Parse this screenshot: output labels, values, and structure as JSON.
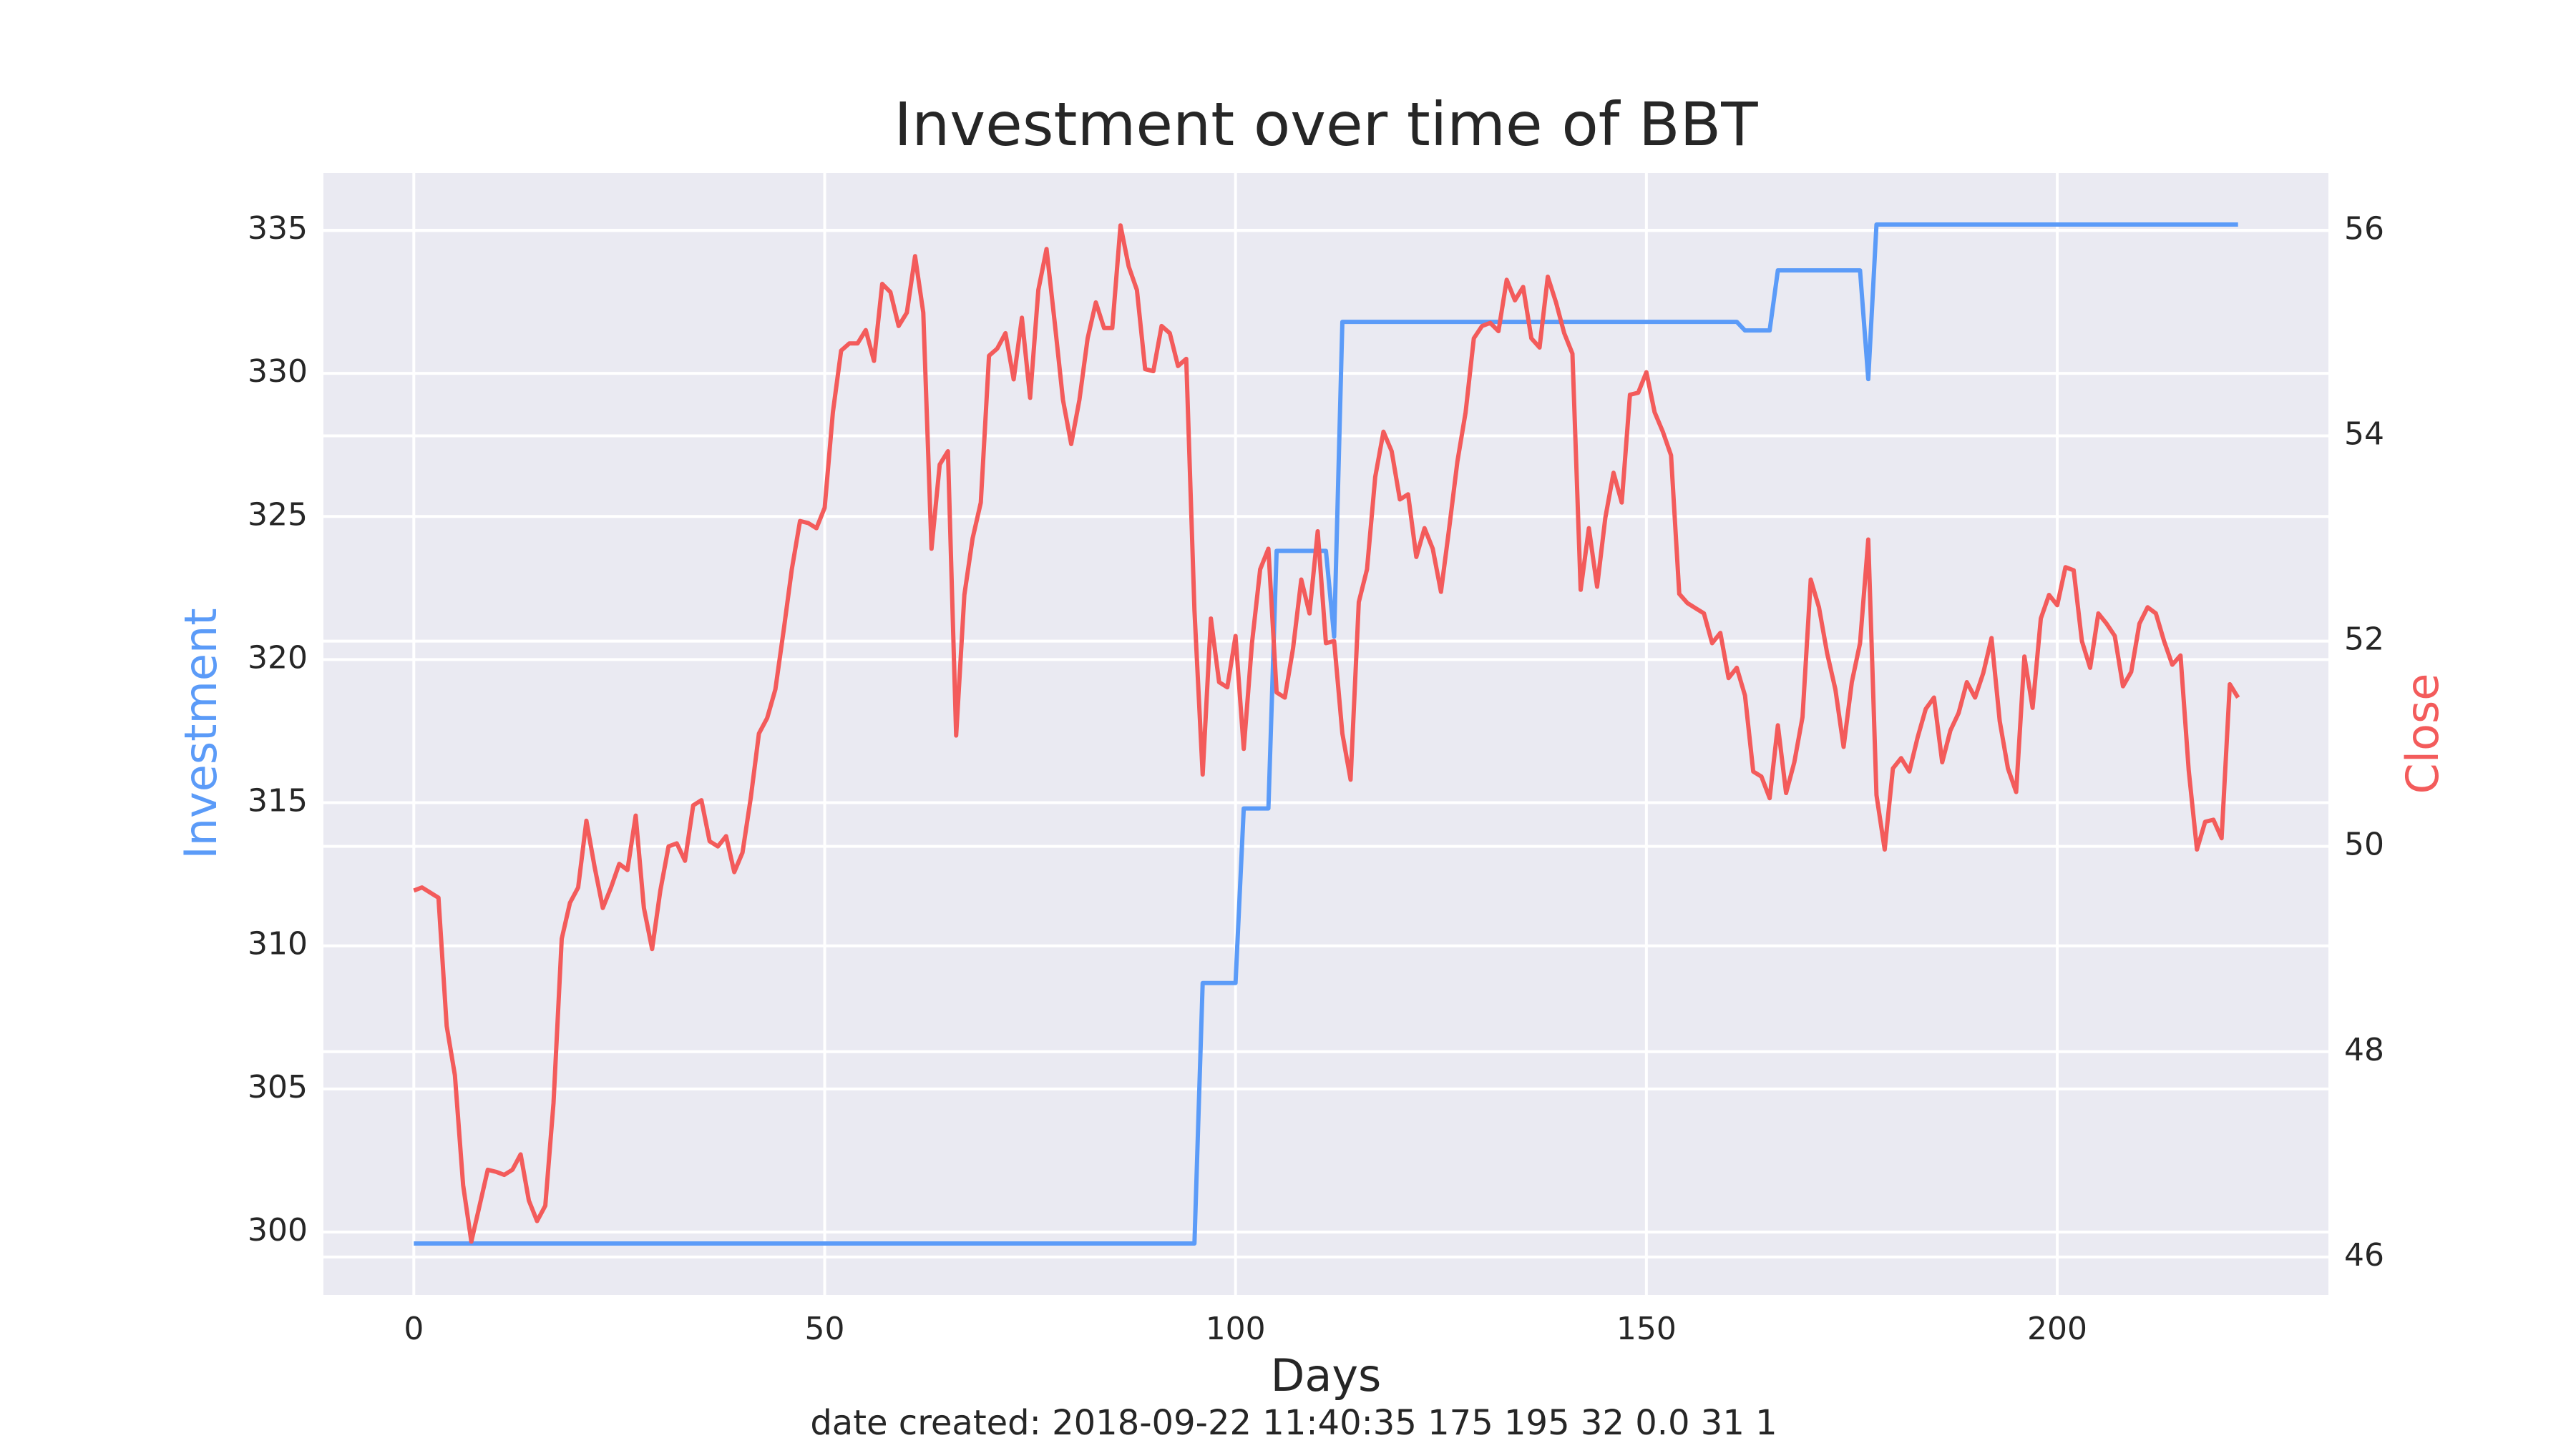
{
  "chart_data": {
    "type": "line",
    "title": "Investment over time of BBT",
    "x_label": "Days",
    "y_label": "Investment",
    "y2_label": "Close",
    "y_label_color": "#5b9bf8",
    "y2_label_color": "#f35b5b",
    "footer": "date created: 2018-09-22 11:40:35 175 195 32 0.0 31 1",
    "grid": true,
    "xlim": [
      -11,
      233
    ],
    "xticks": [
      0,
      50,
      100,
      150,
      200
    ],
    "ylim": [
      297.8,
      337.0
    ],
    "yticks": [
      300,
      305,
      310,
      315,
      320,
      325,
      330,
      335
    ],
    "y2lim": [
      45.63,
      56.56
    ],
    "y2ticks": [
      46,
      48,
      50,
      52,
      54,
      56
    ],
    "x": [
      0,
      1,
      2,
      3,
      4,
      5,
      6,
      7,
      8,
      9,
      10,
      11,
      12,
      13,
      14,
      15,
      16,
      17,
      18,
      19,
      20,
      21,
      22,
      23,
      24,
      25,
      26,
      27,
      28,
      29,
      30,
      31,
      32,
      33,
      34,
      35,
      36,
      37,
      38,
      39,
      40,
      41,
      42,
      43,
      44,
      45,
      46,
      47,
      48,
      49,
      50,
      51,
      52,
      53,
      54,
      55,
      56,
      57,
      58,
      59,
      60,
      61,
      62,
      63,
      64,
      65,
      66,
      67,
      68,
      69,
      70,
      71,
      72,
      73,
      74,
      75,
      76,
      77,
      78,
      79,
      80,
      81,
      82,
      83,
      84,
      85,
      86,
      87,
      88,
      89,
      90,
      91,
      92,
      93,
      94,
      95,
      96,
      97,
      98,
      99,
      100,
      101,
      102,
      103,
      104,
      105,
      106,
      107,
      108,
      109,
      110,
      111,
      112,
      113,
      114,
      115,
      116,
      117,
      118,
      119,
      120,
      121,
      122,
      123,
      124,
      125,
      126,
      127,
      128,
      129,
      130,
      131,
      132,
      133,
      134,
      135,
      136,
      137,
      138,
      139,
      140,
      141,
      142,
      143,
      144,
      145,
      146,
      147,
      148,
      149,
      150,
      151,
      152,
      153,
      154,
      155,
      156,
      157,
      158,
      159,
      160,
      161,
      162,
      163,
      164,
      165,
      166,
      167,
      168,
      169,
      170,
      171,
      172,
      173,
      174,
      175,
      176,
      177,
      178,
      179,
      180,
      181,
      182,
      183,
      184,
      185,
      186,
      187,
      188,
      189,
      190,
      191,
      192,
      193,
      194,
      195,
      196,
      197,
      198,
      199,
      200,
      201,
      202,
      203,
      204,
      205,
      206,
      207,
      208,
      209,
      210,
      211,
      212,
      213,
      214,
      215,
      216,
      217,
      218,
      219,
      220,
      221,
      222
    ],
    "series": [
      {
        "name": "Investment",
        "color": "#5b9bf8",
        "axis": "y",
        "values": [
          299.6,
          299.6,
          299.6,
          299.6,
          299.6,
          299.6,
          299.6,
          299.6,
          299.6,
          299.6,
          299.6,
          299.6,
          299.6,
          299.6,
          299.6,
          299.6,
          299.6,
          299.6,
          299.6,
          299.6,
          299.6,
          299.6,
          299.6,
          299.6,
          299.6,
          299.6,
          299.6,
          299.6,
          299.6,
          299.6,
          299.6,
          299.6,
          299.6,
          299.6,
          299.6,
          299.6,
          299.6,
          299.6,
          299.6,
          299.6,
          299.6,
          299.6,
          299.6,
          299.6,
          299.6,
          299.6,
          299.6,
          299.6,
          299.6,
          299.6,
          299.6,
          299.6,
          299.6,
          299.6,
          299.6,
          299.6,
          299.6,
          299.6,
          299.6,
          299.6,
          299.6,
          299.6,
          299.6,
          299.6,
          299.6,
          299.6,
          299.6,
          299.6,
          299.6,
          299.6,
          299.6,
          299.6,
          299.6,
          299.6,
          299.6,
          299.6,
          299.6,
          299.6,
          299.6,
          299.6,
          299.6,
          299.6,
          299.6,
          299.6,
          299.6,
          299.6,
          299.6,
          299.6,
          299.6,
          299.6,
          299.6,
          299.6,
          299.6,
          299.6,
          299.6,
          299.6,
          308.7,
          308.7,
          308.7,
          308.7,
          308.7,
          314.8,
          314.8,
          314.8,
          314.8,
          323.8,
          323.8,
          323.8,
          323.8,
          323.8,
          323.8,
          323.8,
          320.8,
          331.8,
          331.8,
          331.8,
          331.8,
          331.8,
          331.8,
          331.8,
          331.8,
          331.8,
          331.8,
          331.8,
          331.8,
          331.8,
          331.8,
          331.8,
          331.8,
          331.8,
          331.8,
          331.8,
          331.8,
          331.8,
          331.8,
          331.8,
          331.8,
          331.8,
          331.8,
          331.8,
          331.8,
          331.8,
          331.8,
          331.8,
          331.8,
          331.8,
          331.8,
          331.8,
          331.8,
          331.8,
          331.8,
          331.8,
          331.8,
          331.8,
          331.8,
          331.8,
          331.8,
          331.8,
          331.8,
          331.8,
          331.8,
          331.8,
          331.5,
          331.5,
          331.5,
          331.5,
          333.6,
          333.6,
          333.6,
          333.6,
          333.6,
          333.6,
          333.6,
          333.6,
          333.6,
          333.6,
          333.6,
          329.8,
          335.2,
          335.2,
          335.2,
          335.2,
          335.2,
          335.2,
          335.2,
          335.2,
          335.2,
          335.2,
          335.2,
          335.2,
          335.2,
          335.2,
          335.2,
          335.2,
          335.2,
          335.2,
          335.2,
          335.2,
          335.2,
          335.2,
          335.2,
          335.2,
          335.2,
          335.2,
          335.2,
          335.2,
          335.2,
          335.2,
          335.2,
          335.2,
          335.2,
          335.2,
          335.2,
          335.2,
          335.2,
          335.2,
          335.2,
          335.2,
          335.2,
          335.2,
          335.2,
          335.2,
          335.2
        ]
      },
      {
        "name": "Close",
        "color": "#f35b5b",
        "axis": "y2",
        "values": [
          49.57,
          49.6,
          49.55,
          49.5,
          48.25,
          47.77,
          46.7,
          46.15,
          46.5,
          46.85,
          46.83,
          46.8,
          46.85,
          47.0,
          46.55,
          46.35,
          46.5,
          47.5,
          49.1,
          49.45,
          49.6,
          50.25,
          49.8,
          49.4,
          49.6,
          49.83,
          49.77,
          50.3,
          49.4,
          49.0,
          49.57,
          50.0,
          50.03,
          49.86,
          50.4,
          50.45,
          50.05,
          50.0,
          50.1,
          49.75,
          49.94,
          50.47,
          51.1,
          51.25,
          51.53,
          52.1,
          52.7,
          53.17,
          53.15,
          53.1,
          53.3,
          54.23,
          54.83,
          54.9,
          54.9,
          55.03,
          54.73,
          55.48,
          55.4,
          55.07,
          55.2,
          55.75,
          55.2,
          52.9,
          53.72,
          53.85,
          51.08,
          52.45,
          53.0,
          53.35,
          54.78,
          54.85,
          55.0,
          54.55,
          55.15,
          54.37,
          55.42,
          55.82,
          55.1,
          54.35,
          53.92,
          54.35,
          54.95,
          55.3,
          55.05,
          55.05,
          56.05,
          55.65,
          55.42,
          54.65,
          54.63,
          55.07,
          55.0,
          54.68,
          54.75,
          52.3,
          50.7,
          52.22,
          51.6,
          51.55,
          52.05,
          50.95,
          51.98,
          52.7,
          52.9,
          51.5,
          51.45,
          51.93,
          52.6,
          52.27,
          53.07,
          51.98,
          52.0,
          51.1,
          50.65,
          52.38,
          52.7,
          53.6,
          54.04,
          53.85,
          53.38,
          53.43,
          52.82,
          53.1,
          52.9,
          52.48,
          53.1,
          53.75,
          54.23,
          54.95,
          55.07,
          55.1,
          55.02,
          55.52,
          55.32,
          55.45,
          54.95,
          54.86,
          55.55,
          55.3,
          55.0,
          54.8,
          52.5,
          53.1,
          52.53,
          53.2,
          53.64,
          53.35,
          54.4,
          54.42,
          54.62,
          54.23,
          54.04,
          53.81,
          52.46,
          52.37,
          52.32,
          52.27,
          51.98,
          52.08,
          51.64,
          51.74,
          51.47,
          50.73,
          50.68,
          50.47,
          51.18,
          50.52,
          50.82,
          51.26,
          52.6,
          52.33,
          51.88,
          51.53,
          50.97,
          51.6,
          51.98,
          52.99,
          50.5,
          49.97,
          50.76,
          50.86,
          50.73,
          51.06,
          51.34,
          51.45,
          50.82,
          51.13,
          51.3,
          51.6,
          51.45,
          51.69,
          52.03,
          51.22,
          50.76,
          50.53,
          51.85,
          51.35,
          52.22,
          52.45,
          52.35,
          52.72,
          52.69,
          52.0,
          51.74,
          52.27,
          52.17,
          52.05,
          51.56,
          51.7,
          52.17,
          52.33,
          52.27,
          52.0,
          51.77,
          51.86,
          50.74,
          49.97,
          50.24,
          50.26,
          50.08,
          51.58,
          51.45
        ]
      }
    ]
  }
}
